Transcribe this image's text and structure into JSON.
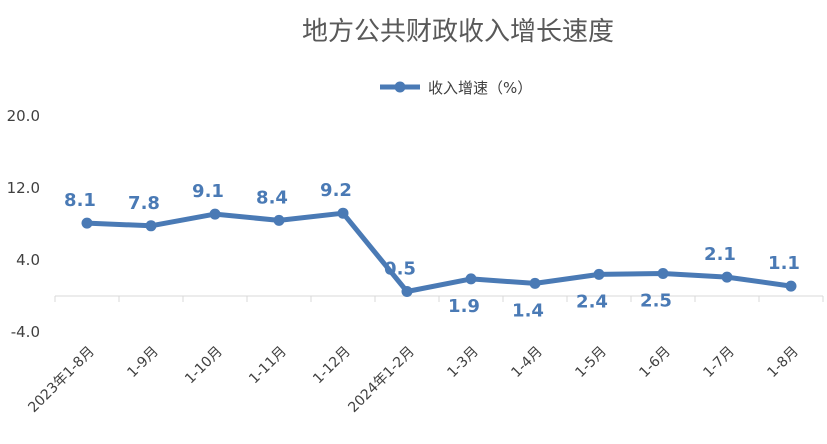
{
  "chart_data": {
    "type": "line",
    "title": "地方公共财政收入增长速度",
    "xlabel": "",
    "ylabel": "",
    "ylim": [
      -4.0,
      20.0
    ],
    "yticks": [
      "20.0",
      "12.0",
      "4.0",
      "-4.0"
    ],
    "grid": false,
    "legend": "top-center",
    "colors": {
      "series": "#4a7ab5",
      "axis": "#d9d9d9"
    },
    "categories": [
      "2023年1-8月",
      "1-9月",
      "1-10月",
      "1-11月",
      "1-12月",
      "2024年1-2月",
      "1-3月",
      "1-4月",
      "1-5月",
      "1-6月",
      "1-7月",
      "1-8月"
    ],
    "series": [
      {
        "name": "收入增速（%）",
        "values": [
          8.1,
          7.8,
          9.1,
          8.4,
          9.2,
          0.5,
          1.9,
          1.4,
          2.4,
          2.5,
          2.1,
          1.1
        ]
      }
    ],
    "data_labels": [
      "8.1",
      "7.8",
      "9.1",
      "8.4",
      "9.2",
      "0.5",
      "1.9",
      "1.4",
      "2.4",
      "2.5",
      "2.1",
      "1.1"
    ],
    "label_positions": [
      "above",
      "above",
      "above",
      "above",
      "above",
      "above",
      "below",
      "below",
      "below",
      "below",
      "above",
      "above"
    ]
  }
}
